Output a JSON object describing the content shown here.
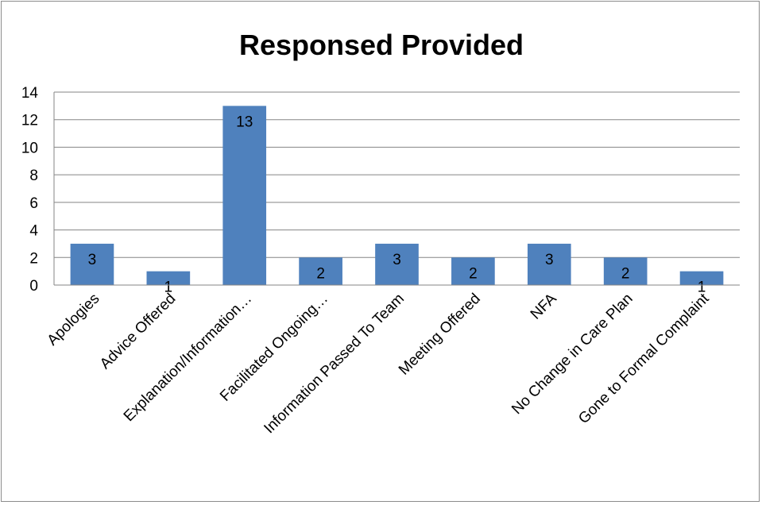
{
  "chart_data": {
    "type": "bar",
    "title": "Responsed Provided",
    "categories": [
      "Apologies",
      "Advice Offered",
      "Explanation/Information…",
      "Facilitated Ongoing…",
      "Information Passed To Team",
      "Meeting Offered",
      "NFA",
      "No Change in Care Plan",
      "Gone to Formal Complaint"
    ],
    "values": [
      3,
      1,
      13,
      2,
      3,
      2,
      3,
      2,
      1
    ],
    "ylim": [
      0,
      14
    ],
    "yticks": [
      0,
      2,
      4,
      6,
      8,
      10,
      12,
      14
    ],
    "xlabel": "",
    "ylabel": "",
    "grid": true,
    "legend": "none",
    "bar_color": "#4f81bd"
  }
}
